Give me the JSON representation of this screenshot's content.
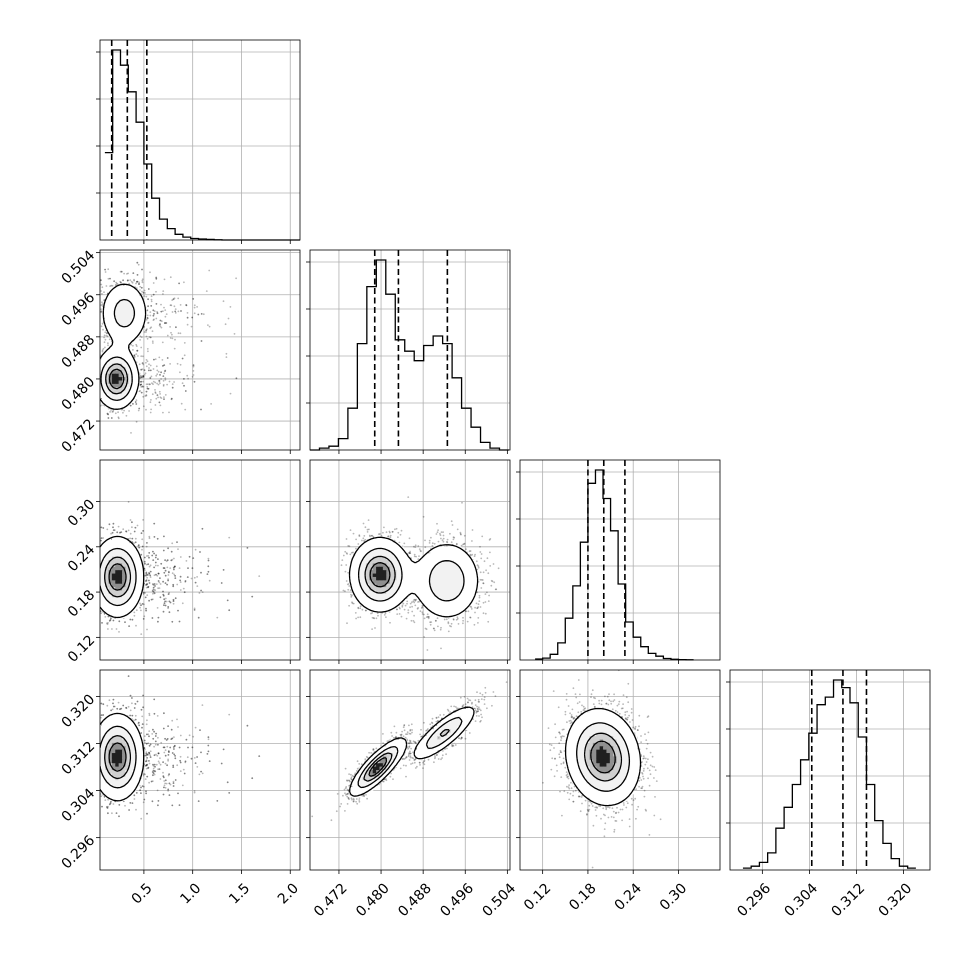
{
  "chart_data": {
    "type": "corner",
    "parameters": [
      {
        "ticks": [
          0.5,
          1.0,
          1.5,
          2.0
        ],
        "tick_labels": [
          "0.5",
          "1.0",
          "1.5",
          "2.0"
        ],
        "range": [
          0.05,
          2.1
        ],
        "quantiles": [
          0.17,
          0.33,
          0.53
        ],
        "mode": 0.22,
        "histogram": {
          "edges": [
            0.1,
            0.18,
            0.26,
            0.34,
            0.42,
            0.5,
            0.58,
            0.66,
            0.74,
            0.82,
            0.9,
            0.98,
            1.06,
            1.14,
            1.22,
            1.3,
            1.38,
            1.46,
            1.54,
            1.62,
            1.7,
            1.78,
            1.86,
            1.94,
            2.02,
            2.1
          ],
          "counts": [
            0.46,
            1.0,
            0.92,
            0.78,
            0.62,
            0.4,
            0.22,
            0.11,
            0.06,
            0.03,
            0.015,
            0.008,
            0.005,
            0.003,
            0.001,
            0,
            0,
            0,
            0,
            0,
            0,
            0,
            0,
            0,
            0
          ]
        }
      },
      {
        "ticks": [
          0.472,
          0.48,
          0.488,
          0.496,
          0.504
        ],
        "tick_labels": [
          "0.472",
          "0.480",
          "0.488",
          "0.496",
          "0.504"
        ],
        "range": [
          0.4665,
          0.5045
        ],
        "quantiles": [
          0.4788,
          0.4833,
          0.4926
        ],
        "histogram": {
          "edges": [
            0.4665,
            0.4683,
            0.4701,
            0.4719,
            0.4737,
            0.4755,
            0.4773,
            0.4791,
            0.4809,
            0.4827,
            0.4845,
            0.4863,
            0.4881,
            0.4899,
            0.4917,
            0.4935,
            0.4953,
            0.4971,
            0.4989,
            0.5007,
            0.5025,
            0.5043
          ],
          "counts": [
            0.0,
            0.01,
            0.02,
            0.06,
            0.22,
            0.56,
            0.86,
            1.0,
            0.82,
            0.58,
            0.52,
            0.47,
            0.55,
            0.6,
            0.56,
            0.38,
            0.22,
            0.12,
            0.04,
            0.01,
            0.0
          ]
        }
      },
      {
        "ticks": [
          0.12,
          0.18,
          0.24,
          0.3
        ],
        "tick_labels": [
          "0.12",
          "0.18",
          "0.24",
          "0.30"
        ],
        "range": [
          0.09,
          0.355
        ],
        "quantiles": [
          0.18,
          0.201,
          0.229
        ],
        "histogram": {
          "edges": [
            0.11,
            0.12,
            0.13,
            0.14,
            0.15,
            0.16,
            0.17,
            0.18,
            0.19,
            0.2,
            0.21,
            0.22,
            0.23,
            0.24,
            0.25,
            0.26,
            0.27,
            0.28,
            0.29,
            0.3,
            0.31,
            0.32
          ],
          "counts": [
            0.005,
            0.01,
            0.03,
            0.09,
            0.22,
            0.39,
            0.62,
            0.93,
            1.0,
            0.85,
            0.68,
            0.4,
            0.2,
            0.12,
            0.07,
            0.035,
            0.02,
            0.008,
            0.004,
            0.002,
            0.001
          ]
        }
      },
      {
        "ticks": [
          0.296,
          0.304,
          0.312,
          0.32
        ],
        "tick_labels": [
          "0.296",
          "0.304",
          "0.312",
          "0.320"
        ],
        "range": [
          0.2905,
          0.3245
        ],
        "quantiles": [
          0.3044,
          0.3097,
          0.3137
        ],
        "histogram": {
          "edges": [
            0.2927,
            0.2941,
            0.2955,
            0.2969,
            0.2983,
            0.2997,
            0.3011,
            0.3025,
            0.3039,
            0.3053,
            0.3067,
            0.3081,
            0.3095,
            0.3109,
            0.3123,
            0.3137,
            0.3151,
            0.3165,
            0.3179,
            0.3193,
            0.3207,
            0.3221
          ],
          "counts": [
            0.01,
            0.02,
            0.04,
            0.09,
            0.22,
            0.33,
            0.45,
            0.58,
            0.72,
            0.87,
            0.91,
            1.0,
            0.96,
            0.88,
            0.7,
            0.45,
            0.26,
            0.14,
            0.06,
            0.02,
            0.01
          ]
        }
      }
    ],
    "pairs": [
      {
        "row": 1,
        "col": 0,
        "clusters": [
          {
            "cx": 0.22,
            "cy": 0.48,
            "sx": 0.11,
            "sy": 0.0028,
            "rho": 0.0,
            "w": 0.6
          },
          {
            "cx": 0.3,
            "cy": 0.4925,
            "sx": 0.13,
            "sy": 0.0033,
            "rho": 0.0,
            "w": 0.4
          }
        ]
      },
      {
        "row": 2,
        "col": 0,
        "clusters": [
          {
            "cx": 0.23,
            "cy": 0.2,
            "sx": 0.13,
            "sy": 0.026,
            "rho": 0.0,
            "w": 1.0
          }
        ]
      },
      {
        "row": 2,
        "col": 1,
        "clusters": [
          {
            "cx": 0.4798,
            "cy": 0.203,
            "sx": 0.0028,
            "sy": 0.024,
            "rho": 0.0,
            "w": 0.57
          },
          {
            "cx": 0.4925,
            "cy": 0.195,
            "sx": 0.0033,
            "sy": 0.027,
            "rho": 0.0,
            "w": 0.43
          }
        ]
      },
      {
        "row": 3,
        "col": 0,
        "clusters": [
          {
            "cx": 0.23,
            "cy": 0.3097,
            "sx": 0.13,
            "sy": 0.0036,
            "rho": 0.0,
            "w": 1.0
          }
        ]
      },
      {
        "row": 3,
        "col": 1,
        "clusters": [
          {
            "cx": 0.4794,
            "cy": 0.308,
            "sx": 0.0026,
            "sy": 0.0024,
            "rho": 0.82,
            "w": 0.57
          },
          {
            "cx": 0.492,
            "cy": 0.3138,
            "sx": 0.0031,
            "sy": 0.0024,
            "rho": 0.82,
            "w": 0.43
          }
        ]
      },
      {
        "row": 3,
        "col": 2,
        "clusters": [
          {
            "cx": 0.2,
            "cy": 0.3097,
            "sx": 0.024,
            "sy": 0.004,
            "rho": -0.12,
            "w": 1.0
          }
        ]
      }
    ]
  }
}
